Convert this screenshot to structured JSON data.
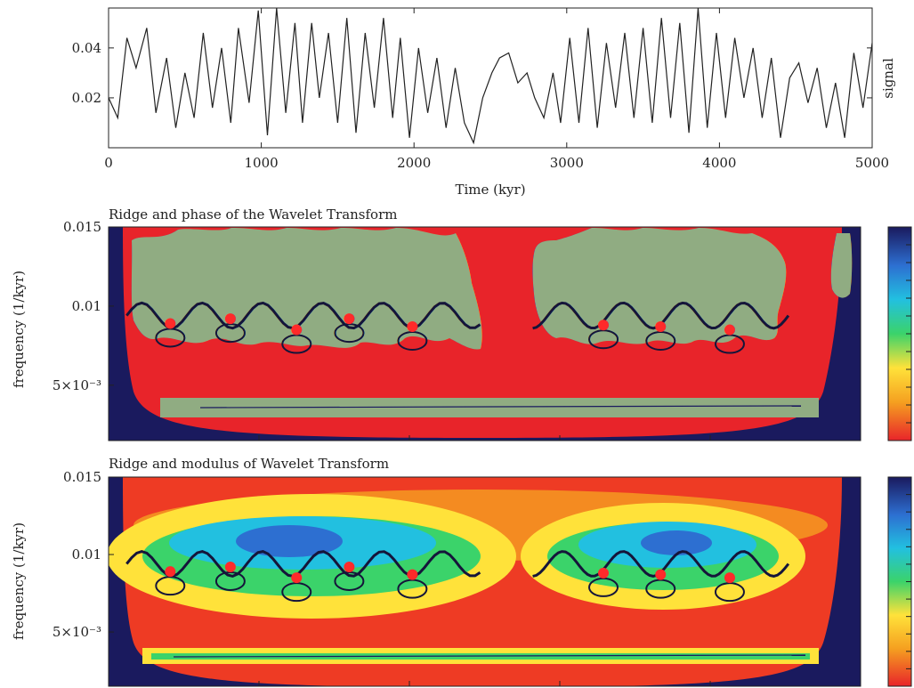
{
  "figure": {
    "panel1": {
      "x_ticks": [
        "0",
        "1000",
        "2000",
        "3000",
        "4000",
        "5000"
      ],
      "y_ticks": [
        "0.02",
        "0.04"
      ],
      "xlabel": "Time (kyr)",
      "ylabel": "signal"
    },
    "panel2": {
      "title": "Ridge and phase of the Wavelet Transform",
      "ylabel": "frequency (1/kyr)",
      "y_ticks": [
        "0.015",
        "0.01",
        "5×10⁻³"
      ]
    },
    "panel3": {
      "title": "Ridge and modulus of Wavelet Transform",
      "ylabel": "frequency (1/kyr)",
      "y_ticks": [
        "0.015",
        "0.01",
        "5×10⁻³"
      ]
    }
  },
  "chart_data": [
    {
      "type": "line",
      "xlabel": "Time (kyr)",
      "ylabel": "signal",
      "xlim": [
        0,
        5000
      ],
      "ylim": [
        0,
        0.056
      ],
      "x_ticks": [
        0,
        1000,
        2000,
        3000,
        4000,
        5000
      ],
      "y_ticks": [
        0.02,
        0.04
      ],
      "grid": false,
      "series": [
        {
          "x": [
            0,
            60,
            120,
            180,
            250,
            310,
            380,
            440,
            500,
            560,
            620,
            680,
            740,
            800,
            850,
            920,
            980,
            1040,
            1100,
            1160,
            1220,
            1270,
            1330,
            1380,
            1440,
            1500,
            1560,
            1620,
            1680,
            1740,
            1800,
            1860,
            1910,
            1970,
            2030,
            2090,
            2150,
            2210,
            2270,
            2330,
            2390,
            2450,
            2510,
            2560,
            2620,
            2680,
            2740,
            2790,
            2850,
            2910,
            2960,
            3020,
            3080,
            3140,
            3200,
            3260,
            3320,
            3380,
            3440,
            3500,
            3560,
            3620,
            3680,
            3740,
            3800,
            3860,
            3920,
            3980,
            4040,
            4100,
            4160,
            4220,
            4280,
            4340,
            4400,
            4460,
            4520,
            4580,
            4640,
            4700,
            4760,
            4820,
            4880,
            4940,
            5000
          ],
          "y": [
            0.02,
            0.012,
            0.044,
            0.032,
            0.048,
            0.014,
            0.036,
            0.008,
            0.03,
            0.012,
            0.046,
            0.016,
            0.04,
            0.01,
            0.048,
            0.018,
            0.055,
            0.005,
            0.056,
            0.014,
            0.05,
            0.01,
            0.05,
            0.02,
            0.046,
            0.01,
            0.052,
            0.006,
            0.046,
            0.016,
            0.052,
            0.012,
            0.044,
            0.004,
            0.04,
            0.014,
            0.036,
            0.008,
            0.032,
            0.01,
            0.002,
            0.02,
            0.03,
            0.036,
            0.038,
            0.026,
            0.03,
            0.02,
            0.012,
            0.03,
            0.01,
            0.044,
            0.01,
            0.048,
            0.008,
            0.042,
            0.016,
            0.046,
            0.012,
            0.048,
            0.01,
            0.052,
            0.012,
            0.05,
            0.006,
            0.056,
            0.008,
            0.046,
            0.012,
            0.044,
            0.02,
            0.04,
            0.012,
            0.036,
            0.004,
            0.028,
            0.034,
            0.018,
            0.032,
            0.008,
            0.026,
            0.004,
            0.038,
            0.016,
            0.042
          ]
        }
      ]
    },
    {
      "type": "heatmap",
      "title": "Ridge and phase of the Wavelet Transform",
      "xlabel": "",
      "ylabel": "frequency (1/kyr)",
      "xlim": [
        0,
        5000
      ],
      "ylim": [
        0.0015,
        0.015
      ],
      "y_ticks": [
        0.005,
        0.01,
        0.015
      ],
      "quantity": "phase",
      "colormap": [
        "#1a1a5e",
        "#2d6fd1",
        "#22c0e0",
        "#3bd36a",
        "#ffe23a",
        "#f5a020",
        "#e8242a"
      ],
      "ridge_freq": 0.0094,
      "ridge_groups": [
        {
          "x_start": 120,
          "x_end": 2470
        },
        {
          "x_start": 2820,
          "x_end": 4520
        }
      ],
      "local_maxima": [
        {
          "x": 410,
          "freq": 0.0089
        },
        {
          "x": 810,
          "freq": 0.0092
        },
        {
          "x": 1250,
          "freq": 0.0085
        },
        {
          "x": 1600,
          "freq": 0.0092
        },
        {
          "x": 2020,
          "freq": 0.0087
        },
        {
          "x": 3290,
          "freq": 0.0088
        },
        {
          "x": 3670,
          "freq": 0.0087
        },
        {
          "x": 4130,
          "freq": 0.0085
        }
      ]
    },
    {
      "type": "heatmap",
      "title": "Ridge and modulus of Wavelet Transform",
      "xlabel": "",
      "ylabel": "frequency (1/kyr)",
      "xlim": [
        0,
        5000
      ],
      "ylim": [
        0.0015,
        0.015
      ],
      "y_ticks": [
        0.005,
        0.01,
        0.015
      ],
      "quantity": "modulus",
      "colormap": [
        "#e8242a",
        "#f5a020",
        "#ffe23a",
        "#3bd36a",
        "#22c0e0",
        "#2d6fd1",
        "#1a1a5e"
      ],
      "ridge_freq": 0.0094,
      "ridge_groups": [
        {
          "x_start": 120,
          "x_end": 2470
        },
        {
          "x_start": 2820,
          "x_end": 4520
        }
      ],
      "local_maxima": [
        {
          "x": 410,
          "freq": 0.0089
        },
        {
          "x": 810,
          "freq": 0.0092
        },
        {
          "x": 1250,
          "freq": 0.0085
        },
        {
          "x": 1600,
          "freq": 0.0092
        },
        {
          "x": 2020,
          "freq": 0.0087
        },
        {
          "x": 3290,
          "freq": 0.0088
        },
        {
          "x": 3670,
          "freq": 0.0087
        },
        {
          "x": 4130,
          "freq": 0.0085
        }
      ]
    }
  ]
}
